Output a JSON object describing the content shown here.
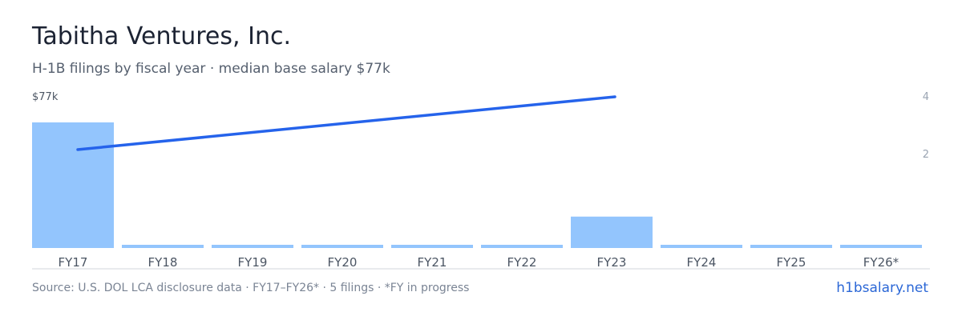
{
  "title": "Tabitha Ventures, Inc.",
  "subtitle": "H-1B filings by fiscal year · median base salary $77k",
  "footer": {
    "source": "Source: U.S. DOL LCA disclosure data · FY17–FY26* · 5 filings · *FY in progress",
    "brand": "h1bsalary.net"
  },
  "colors": {
    "bar": "#93c5fd",
    "line": "#2563eb",
    "axis_text": "#4b5563",
    "tick_text": "#9aa4b2",
    "baseline": "#d1d5db"
  },
  "chart_data": {
    "type": "bar",
    "categories": [
      "FY17",
      "FY18",
      "FY19",
      "FY20",
      "FY21",
      "FY22",
      "FY23",
      "FY24",
      "FY25",
      "FY26*"
    ],
    "series": [
      {
        "type": "bar",
        "axis": "right",
        "values": [
          4,
          0,
          0,
          0,
          0,
          0,
          1,
          0,
          0,
          0
        ]
      },
      {
        "type": "line",
        "axis": "left",
        "x": [
          "FY17",
          "FY23"
        ],
        "values": [
          77,
          77
        ]
      }
    ],
    "y_right": {
      "ticks": [
        2,
        4
      ],
      "tick_labels": [
        "2",
        "4"
      ],
      "lim": [
        0,
        4
      ]
    },
    "y_left": {
      "tick_labels": [
        "$77k"
      ]
    },
    "legend": "none",
    "grid": false
  }
}
